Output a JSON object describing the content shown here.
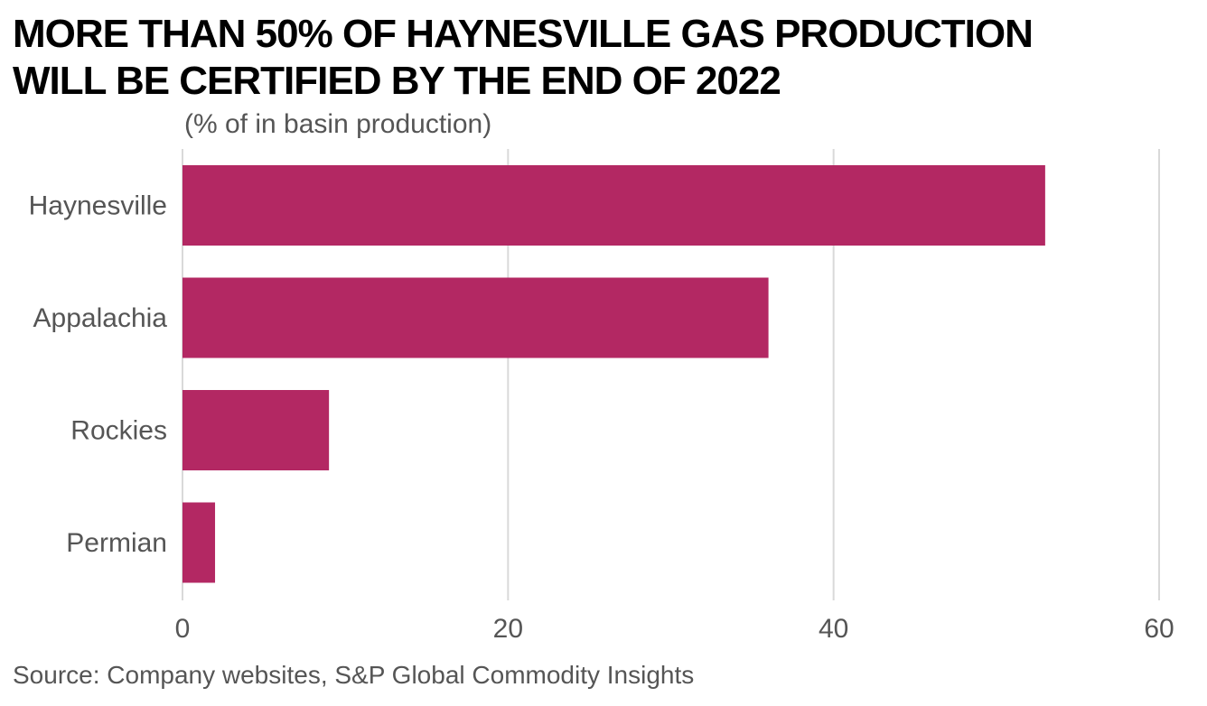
{
  "chart_data": {
    "type": "bar",
    "orientation": "horizontal",
    "title": "More than 50% of Haynesville gas production\nwill be certified by the end of 2022",
    "subtitle": "(% of in basin production)",
    "source": "Source: Company websites, S&P Global Commodity Insights",
    "categories": [
      "Haynesville",
      "Appalachia",
      "Rockies",
      "Permian"
    ],
    "values": [
      53,
      36,
      9,
      2
    ],
    "xlim": [
      0,
      60
    ],
    "xticks": [
      0,
      20,
      40,
      60
    ],
    "grid": true,
    "bar_color": "#b32863"
  }
}
